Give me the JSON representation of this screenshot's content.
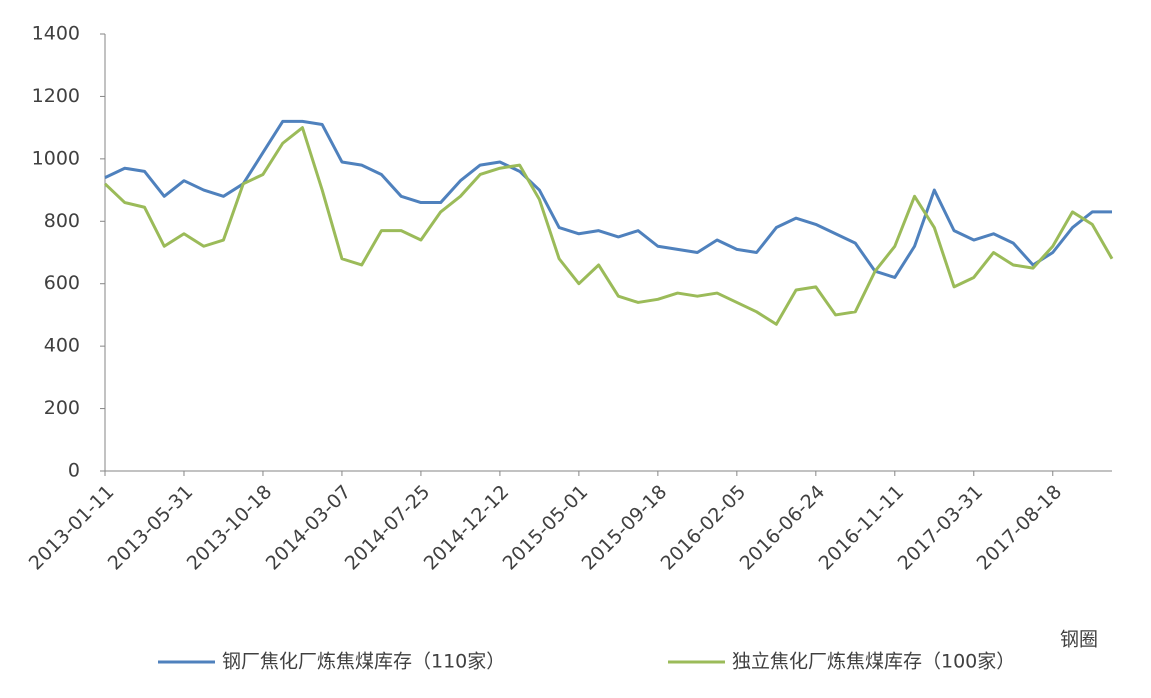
{
  "chart_data": {
    "type": "line",
    "categories": [
      "2013-01-11",
      null,
      null,
      null,
      "2013-05-31",
      null,
      null,
      null,
      "2013-10-18",
      null,
      null,
      null,
      "2014-03-07",
      null,
      null,
      null,
      "2014-07-25",
      null,
      null,
      null,
      "2014-12-12",
      null,
      null,
      null,
      "2015-05-01",
      null,
      null,
      null,
      "2015-09-18",
      null,
      null,
      null,
      "2016-02-05",
      null,
      null,
      null,
      "2016-06-24",
      null,
      null,
      null,
      "2016-11-11",
      null,
      null,
      null,
      "2017-03-31",
      null,
      null,
      null,
      "2017-08-18",
      null,
      null,
      null
    ],
    "series": [
      {
        "name": "钢厂焦化厂炼焦煤库存（110家）",
        "color": "#4f81bd",
        "values": [
          940,
          970,
          960,
          880,
          930,
          900,
          880,
          920,
          1020,
          1120,
          1120,
          1110,
          990,
          980,
          950,
          880,
          860,
          860,
          930,
          980,
          990,
          960,
          900,
          780,
          760,
          770,
          750,
          770,
          720,
          710,
          700,
          740,
          710,
          700,
          780,
          810,
          790,
          760,
          730,
          640,
          620,
          720,
          900,
          770,
          740,
          760,
          730,
          660,
          700,
          780,
          830,
          830
        ]
      },
      {
        "name": "独立焦化厂炼焦煤库存（100家）",
        "color": "#9bbb59",
        "values": [
          920,
          860,
          845,
          720,
          760,
          720,
          740,
          920,
          950,
          1050,
          1100,
          900,
          680,
          660,
          770,
          770,
          740,
          830,
          880,
          950,
          970,
          980,
          870,
          680,
          600,
          660,
          560,
          540,
          550,
          570,
          560,
          570,
          540,
          510,
          470,
          580,
          590,
          500,
          510,
          640,
          720,
          880,
          780,
          590,
          620,
          700,
          660,
          650,
          720,
          830,
          790,
          680
        ]
      }
    ],
    "ylim": [
      0,
      1400
    ],
    "yticks": [
      0,
      200,
      400,
      600,
      800,
      1000,
      1200,
      1400
    ],
    "legend": "bottom",
    "watermark": "钢圈"
  }
}
